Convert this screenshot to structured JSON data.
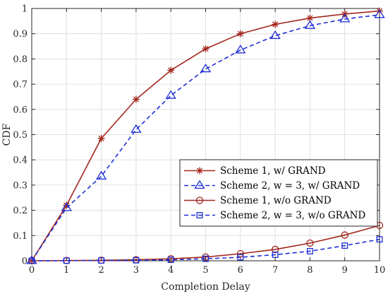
{
  "chart_data": {
    "type": "line",
    "xlabel": "Completion Delay",
    "ylabel": "CDF",
    "xlim": [
      0,
      10
    ],
    "ylim": [
      0,
      1
    ],
    "x_ticks": [
      0,
      1,
      2,
      3,
      4,
      5,
      6,
      7,
      8,
      9,
      10
    ],
    "y_ticks": [
      0,
      0.1,
      0.2,
      0.3,
      0.4,
      0.5,
      0.6,
      0.7,
      0.8,
      0.9,
      1
    ],
    "grid": true,
    "legend_position": "center-right",
    "x": [
      0,
      1,
      2,
      3,
      4,
      5,
      6,
      7,
      8,
      9,
      10
    ],
    "series": [
      {
        "name": "Scheme 1, w/ GRAND",
        "marker": "star",
        "linestyle": "solid",
        "color": "#a2261c",
        "values": [
          0,
          0.22,
          0.485,
          0.64,
          0.755,
          0.84,
          0.9,
          0.937,
          0.962,
          0.978,
          0.99
        ]
      },
      {
        "name": "Scheme 2, w = 3, w/ GRAND",
        "marker": "triangle",
        "linestyle": "dashed",
        "color": "#1f2fd6",
        "values": [
          0,
          0.21,
          0.335,
          0.52,
          0.655,
          0.76,
          0.835,
          0.892,
          0.932,
          0.958,
          0.975
        ]
      },
      {
        "name": "Scheme 1, w/o GRAND",
        "marker": "circle",
        "linestyle": "solid",
        "color": "#a2261c",
        "values": [
          0,
          0.001,
          0.002,
          0.004,
          0.008,
          0.015,
          0.028,
          0.045,
          0.07,
          0.102,
          0.14
        ]
      },
      {
        "name": "Scheme 2, w = 3, w/o GRAND",
        "marker": "square",
        "linestyle": "dashed",
        "color": "#1f2fd6",
        "values": [
          0,
          0.0005,
          0.001,
          0.002,
          0.004,
          0.008,
          0.014,
          0.024,
          0.038,
          0.06,
          0.085
        ]
      }
    ]
  }
}
